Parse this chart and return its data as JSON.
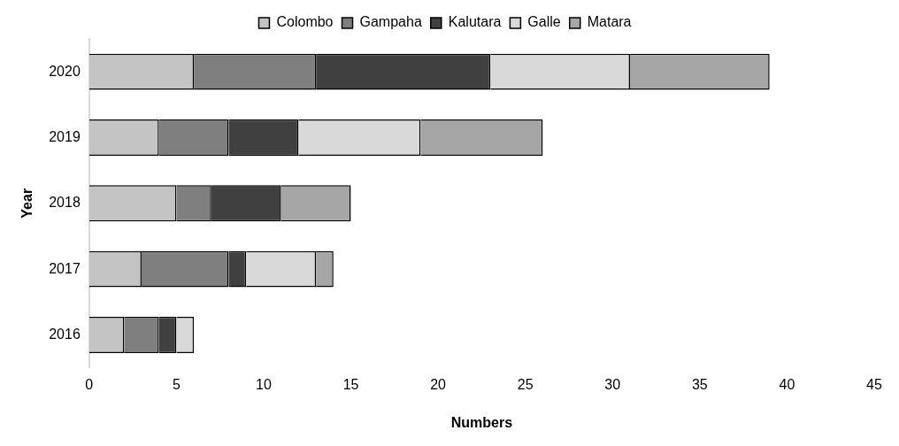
{
  "chart_data": {
    "type": "bar",
    "orientation": "horizontal",
    "stacked": true,
    "xlabel": "Numbers",
    "ylabel": "Year",
    "categories": [
      "2020",
      "2019",
      "2018",
      "2017",
      "2016"
    ],
    "series": [
      {
        "name": "Colombo",
        "color": "#c4c4c4",
        "values": [
          6,
          4,
          5,
          3,
          2
        ]
      },
      {
        "name": "Gampaha",
        "color": "#7f7f7f",
        "values": [
          7,
          4,
          2,
          5,
          2
        ]
      },
      {
        "name": "Kalutara",
        "color": "#404040",
        "values": [
          10,
          4,
          4,
          1,
          1
        ]
      },
      {
        "name": "Galle",
        "color": "#d9d9d9",
        "values": [
          8,
          7,
          0,
          4,
          1
        ]
      },
      {
        "name": "Matara",
        "color": "#a6a6a6",
        "values": [
          8,
          7,
          4,
          1,
          0
        ]
      }
    ],
    "xlim": [
      0,
      45
    ],
    "xticks": [
      0,
      5,
      10,
      15,
      20,
      25,
      30,
      35,
      40,
      45
    ],
    "grid": false,
    "legend": "top"
  }
}
